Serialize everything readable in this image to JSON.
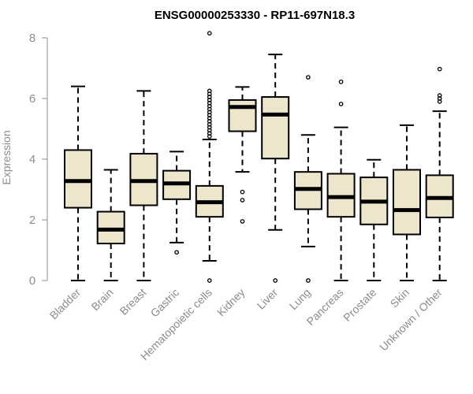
{
  "chart_data": {
    "type": "boxplot",
    "title": "ENSG00000253330 - RP11-697N18.3",
    "xlabel": "",
    "ylabel": "Expression",
    "ylim": [
      0,
      8
    ],
    "yticks": [
      0,
      2,
      4,
      6,
      8
    ],
    "categories": [
      "Bladder",
      "Brain",
      "Breast",
      "Gastric",
      "Hematopoietic cells",
      "Kidney",
      "Liver",
      "Lung",
      "Pancreas",
      "Prostate",
      "Skin",
      "Unknown / Other"
    ],
    "boxes": [
      {
        "category": "Bladder",
        "whisker_low": 0.0,
        "q1": 2.4,
        "median": 3.28,
        "q3": 4.3,
        "whisker_high": 6.4,
        "outliers": []
      },
      {
        "category": "Brain",
        "whisker_low": 0.0,
        "q1": 1.22,
        "median": 1.68,
        "q3": 2.27,
        "whisker_high": 3.65,
        "outliers": []
      },
      {
        "category": "Breast",
        "whisker_low": 0.0,
        "q1": 2.48,
        "median": 3.28,
        "q3": 4.18,
        "whisker_high": 6.25,
        "outliers": []
      },
      {
        "category": "Gastric",
        "whisker_low": 1.25,
        "q1": 2.68,
        "median": 3.2,
        "q3": 3.62,
        "whisker_high": 4.25,
        "outliers": [
          0.93
        ]
      },
      {
        "category": "Hematopoietic cells",
        "whisker_low": 0.65,
        "q1": 2.1,
        "median": 2.58,
        "q3": 3.12,
        "whisker_high": 4.65,
        "outliers": [
          0.0,
          4.75,
          4.85,
          4.95,
          5.05,
          5.15,
          5.25,
          5.35,
          5.45,
          5.55,
          5.65,
          5.75,
          5.85,
          5.95,
          6.05,
          6.15,
          6.25,
          8.15
        ]
      },
      {
        "category": "Kidney",
        "whisker_low": 3.58,
        "q1": 4.92,
        "median": 5.72,
        "q3": 5.95,
        "whisker_high": 6.38,
        "outliers": [
          1.95,
          2.65,
          2.92
        ]
      },
      {
        "category": "Liver",
        "whisker_low": 1.67,
        "q1": 4.02,
        "median": 5.47,
        "q3": 6.05,
        "whisker_high": 7.45,
        "outliers": [
          0.0
        ]
      },
      {
        "category": "Lung",
        "whisker_low": 1.12,
        "q1": 2.35,
        "median": 3.02,
        "q3": 3.58,
        "whisker_high": 4.8,
        "outliers": [
          0.0,
          6.7
        ]
      },
      {
        "category": "Pancreas",
        "whisker_low": 0.0,
        "q1": 2.1,
        "median": 2.75,
        "q3": 3.52,
        "whisker_high": 5.05,
        "outliers": [
          5.82,
          6.55
        ]
      },
      {
        "category": "Prostate",
        "whisker_low": 0.0,
        "q1": 1.85,
        "median": 2.6,
        "q3": 3.4,
        "whisker_high": 3.98,
        "outliers": []
      },
      {
        "category": "Skin",
        "whisker_low": 0.0,
        "q1": 1.52,
        "median": 2.32,
        "q3": 3.65,
        "whisker_high": 5.12,
        "outliers": []
      },
      {
        "category": "Unknown / Other",
        "whisker_low": 0.0,
        "q1": 2.08,
        "median": 2.72,
        "q3": 3.47,
        "whisker_high": 5.58,
        "outliers": [
          5.9,
          6.0,
          6.1,
          6.97
        ]
      }
    ],
    "box_fill": "#ede6cd",
    "line_color": "#000000",
    "axis_color": "#8c8c8c",
    "grid": false,
    "legend": "none"
  }
}
